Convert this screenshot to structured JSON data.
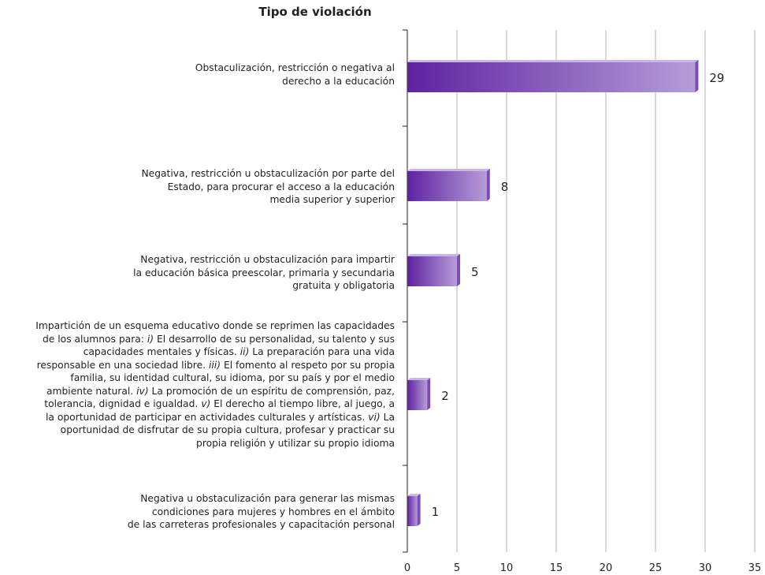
{
  "chart_data": {
    "type": "bar",
    "orientation": "horizontal",
    "title": "Tipo de violación",
    "xlim": [
      0,
      35
    ],
    "xticks": [
      0,
      5,
      10,
      15,
      20,
      25,
      30,
      35
    ],
    "grid": "vertical",
    "color": "#6a2fa5",
    "categories": [
      "Obstaculización, restricción o negativa al derecho a la educación",
      "Negativa, restricción u obstaculización por parte del Estado, para procurar el acceso a la educación media superior y superior",
      "Negativa, restricción u obstaculización para impartir la educación básica preescolar, primaria y secundaria gratuita y obligatoria",
      "Impartición de un esquema educativo donde se reprimen las capacidades de los alumnos para: i) El desarrollo de su personalidad, su talento y sus capacidades mentales y físicas. ii) La preparación para una vida responsable en una sociedad libre. iii) El fomento al respeto por su propia familia, su identidad cultural, su idioma, por su país y por el medio ambiente natural. iv) La promoción de un espíritu de comprensión, paz, tolerancia, dignidad e igualdad. v) El derecho al tiempo libre, al juego, a la oportunidad de participar en actividades culturales y artísticas. vi) La oportunidad de disfrutar de su propia cultura, profesar y practicar su propia religión y utilizar su propio idioma",
      "Negativa u obstaculización para generar las mismas condiciones para mujeres y hombres en el ámbito de las carreteras profesionales y capacitación personal"
    ],
    "values": [
      29,
      8,
      5,
      2,
      1
    ]
  },
  "labels": {
    "cat0": [
      "Obstaculización, restricción o negativa al",
      "derecho a la educación"
    ],
    "cat1": [
      "Negativa, restricción u obstaculización por parte del",
      "Estado, para procurar el acceso a la educación",
      "media superior y superior"
    ],
    "cat2": [
      "Negativa, restricción u obstaculización para impartir",
      "la educación básica preescolar, primaria y secundaria",
      "gratuita y obligatoria"
    ],
    "cat3": [
      [
        {
          "t": "Impartición de un esquema educativo donde se reprimen las capacidades"
        }
      ],
      [
        {
          "t": "de los alumnos para: "
        },
        {
          "t": "i)",
          "i": true
        },
        {
          "t": " El desarrollo de su personalidad, su talento y sus"
        }
      ],
      [
        {
          "t": "capacidades mentales y físicas. "
        },
        {
          "t": "ii)",
          "i": true
        },
        {
          "t": " La preparación para una vida"
        }
      ],
      [
        {
          "t": "responsable en una sociedad libre. "
        },
        {
          "t": "iii)",
          "i": true
        },
        {
          "t": " El fomento al respeto por su propia"
        }
      ],
      [
        {
          "t": "familia, su identidad cultural, su idioma, por su país y por el medio"
        }
      ],
      [
        {
          "t": "ambiente natural. "
        },
        {
          "t": "iv)",
          "i": true
        },
        {
          "t": " La promoción de un espíritu de comprensión, paz,"
        }
      ],
      [
        {
          "t": "tolerancia, dignidad e igualdad. "
        },
        {
          "t": "v)",
          "i": true
        },
        {
          "t": " El derecho al tiempo libre, al juego, a"
        }
      ],
      [
        {
          "t": "la oportunidad de participar en actividades culturales y artísticas. "
        },
        {
          "t": "vi)",
          "i": true
        },
        {
          "t": " La"
        }
      ],
      [
        {
          "t": "oportunidad de disfrutar de su propia cultura, profesar y practicar su"
        }
      ],
      [
        {
          "t": "propia religión y utilizar su propio idioma"
        }
      ]
    ],
    "cat4": [
      "Negativa u obstaculización para generar las mismas",
      "condiciones para mujeres y hombres en el ámbito",
      "de las carreteras profesionales y capacitación personal"
    ]
  }
}
